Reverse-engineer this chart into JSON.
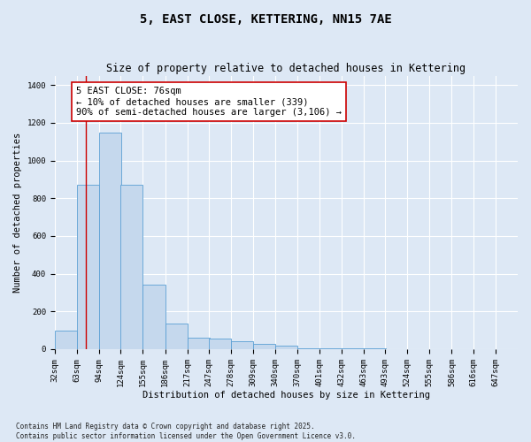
{
  "title": "5, EAST CLOSE, KETTERING, NN15 7AE",
  "subtitle": "Size of property relative to detached houses in Kettering",
  "xlabel": "Distribution of detached houses by size in Kettering",
  "ylabel": "Number of detached properties",
  "bins": [
    32,
    63,
    94,
    124,
    155,
    186,
    217,
    247,
    278,
    309,
    340,
    370,
    401,
    432,
    463,
    493,
    524,
    555,
    586,
    616,
    647
  ],
  "values": [
    100,
    870,
    1150,
    870,
    340,
    135,
    60,
    55,
    40,
    30,
    20,
    5,
    5,
    3,
    3,
    2,
    2,
    2,
    1,
    1,
    1
  ],
  "bar_color": "#c5d8ed",
  "bar_edge_color": "#5a9fd4",
  "vline_x": 76,
  "vline_color": "#cc0000",
  "annotation_text": "5 EAST CLOSE: 76sqm\n← 10% of detached houses are smaller (339)\n90% of semi-detached houses are larger (3,106) →",
  "annotation_box_color": "#ffffff",
  "annotation_box_edge_color": "#cc0000",
  "ylim": [
    0,
    1450
  ],
  "yticks": [
    0,
    200,
    400,
    600,
    800,
    1000,
    1200,
    1400
  ],
  "background_color": "#dde8f5",
  "grid_color": "#ffffff",
  "footer_line1": "Contains HM Land Registry data © Crown copyright and database right 2025.",
  "footer_line2": "Contains public sector information licensed under the Open Government Licence v3.0.",
  "title_fontsize": 10,
  "subtitle_fontsize": 8.5,
  "axis_label_fontsize": 7.5,
  "tick_fontsize": 6.5,
  "annotation_fontsize": 7.5,
  "footer_fontsize": 5.5
}
